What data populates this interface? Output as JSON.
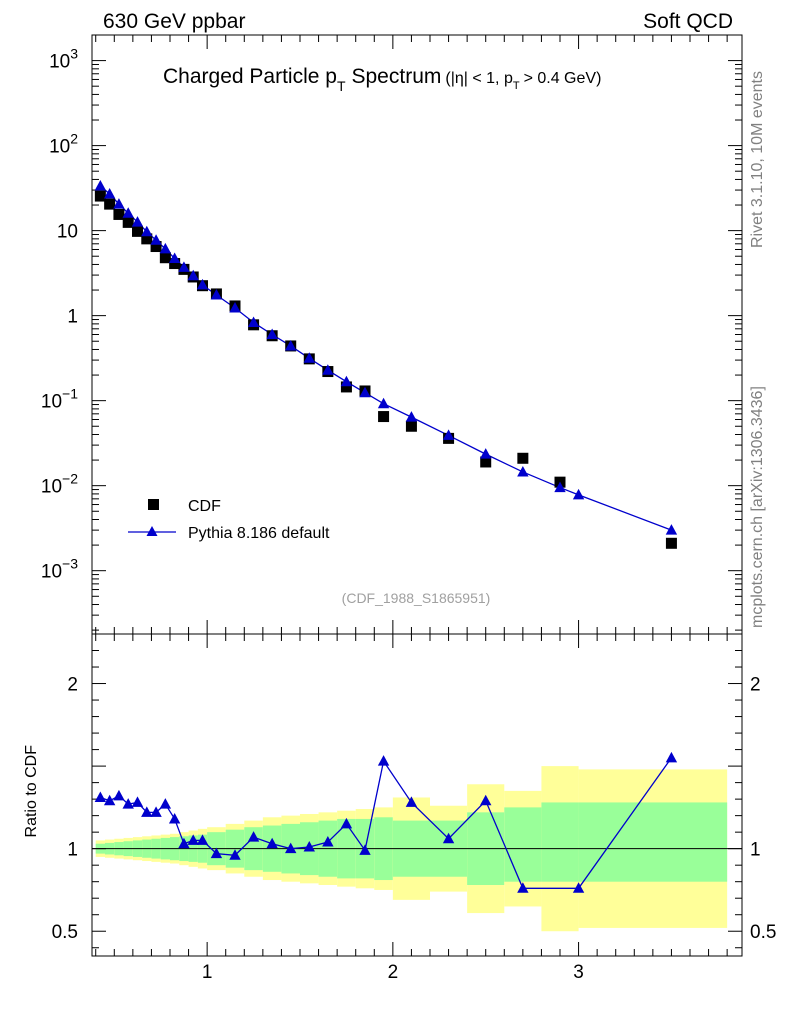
{
  "header": {
    "left": "630 GeV ppbar",
    "right": "Soft QCD"
  },
  "side_labels": {
    "top": "Rivet 3.1.10,  10M events",
    "bottom": "mcplots.cern.ch [arXiv:1306.3436]"
  },
  "colors": {
    "data": "#000000",
    "mc": "#0000cc",
    "band_inner": "#99ff99",
    "band_outer": "#ffff99",
    "watermark": "#a0a0a0"
  },
  "chart_data": [
    {
      "type": "scatter",
      "panel": "main",
      "title": "Charged Particle p",
      "title_sub": "T",
      "title_word": "Spectrum",
      "title_extra": "(|η| < 1, p",
      "title_extra_sub": "T",
      "title_extra_tail": "> 0.4 GeV)",
      "watermark": "(CDF_1988_S1865951)",
      "yscale": "log",
      "xlim": [
        0.38,
        3.88
      ],
      "ylim": [
        0.00018,
        2000
      ],
      "x_ticks": [
        1,
        2,
        3
      ],
      "y_tick_values": [
        0.001,
        0.01,
        0.1,
        1,
        10,
        100,
        1000
      ],
      "y_tick_labels": [
        {
          "base": "10",
          "exp": "−3"
        },
        {
          "base": "10",
          "exp": "−2"
        },
        {
          "base": "10",
          "exp": "−1"
        },
        {
          "base": "1",
          "exp": ""
        },
        {
          "base": "10",
          "exp": ""
        },
        {
          "base": "10",
          "exp": "2"
        },
        {
          "base": "10",
          "exp": "3"
        }
      ],
      "legend_position": "bottom-left",
      "series": [
        {
          "name": "CDF",
          "marker": "square",
          "x": [
            0.425,
            0.475,
            0.525,
            0.575,
            0.625,
            0.675,
            0.725,
            0.775,
            0.825,
            0.875,
            0.925,
            0.975,
            1.05,
            1.15,
            1.25,
            1.35,
            1.45,
            1.55,
            1.65,
            1.75,
            1.85,
            1.95,
            2.1,
            2.3,
            2.5,
            2.7,
            2.9,
            3.5
          ],
          "values": [
            25.5,
            20.5,
            15.5,
            12.5,
            9.8,
            8.0,
            6.5,
            4.8,
            4.1,
            3.5,
            2.85,
            2.25,
            1.8,
            1.3,
            0.78,
            0.58,
            0.44,
            0.31,
            0.22,
            0.145,
            0.13,
            0.065,
            0.05,
            0.036,
            0.019,
            0.021,
            0.011,
            0.0021
          ]
        },
        {
          "name": "Pythia 8.186 default",
          "marker": "triangle",
          "x": [
            0.425,
            0.475,
            0.525,
            0.575,
            0.625,
            0.675,
            0.725,
            0.775,
            0.825,
            0.875,
            0.925,
            0.975,
            1.05,
            1.15,
            1.25,
            1.35,
            1.45,
            1.55,
            1.65,
            1.75,
            1.85,
            1.95,
            2.1,
            2.3,
            2.5,
            2.7,
            2.9,
            3.0,
            3.5
          ],
          "values": [
            33.5,
            27.0,
            20.5,
            16.0,
            12.6,
            9.7,
            7.7,
            6.1,
            4.7,
            3.7,
            2.95,
            2.3,
            1.75,
            1.23,
            0.83,
            0.6,
            0.44,
            0.315,
            0.228,
            0.167,
            0.124,
            0.092,
            0.064,
            0.039,
            0.0235,
            0.0145,
            0.0095,
            0.0078,
            0.003
          ]
        }
      ]
    },
    {
      "type": "line",
      "panel": "ratio",
      "ylabel": "Ratio to CDF",
      "xlim": [
        0.38,
        3.88
      ],
      "ylim": [
        0.35,
        2.3
      ],
      "x_ticks": [
        1,
        2,
        3
      ],
      "x_tick_labels": [
        "1",
        "2",
        "3"
      ],
      "y_ticks": [
        0.5,
        1,
        2
      ],
      "y_tick_labels": [
        "0.5",
        "1",
        "2"
      ],
      "bands": {
        "edges": [
          0.4,
          0.45,
          0.5,
          0.55,
          0.6,
          0.65,
          0.7,
          0.75,
          0.8,
          0.85,
          0.9,
          0.95,
          1.0,
          1.1,
          1.2,
          1.3,
          1.4,
          1.5,
          1.6,
          1.7,
          1.8,
          1.9,
          2.0,
          2.2,
          2.4,
          2.6,
          2.8,
          3.0,
          3.8
        ],
        "inner_low": [
          0.97,
          0.965,
          0.96,
          0.955,
          0.95,
          0.945,
          0.94,
          0.935,
          0.93,
          0.925,
          0.92,
          0.915,
          0.9,
          0.885,
          0.87,
          0.86,
          0.85,
          0.84,
          0.83,
          0.82,
          0.82,
          0.81,
          0.83,
          0.83,
          0.78,
          0.8,
          0.8,
          0.8
        ],
        "inner_high": [
          1.03,
          1.035,
          1.04,
          1.045,
          1.05,
          1.055,
          1.06,
          1.065,
          1.07,
          1.075,
          1.08,
          1.085,
          1.1,
          1.115,
          1.13,
          1.14,
          1.15,
          1.16,
          1.17,
          1.18,
          1.18,
          1.19,
          1.17,
          1.17,
          1.22,
          1.25,
          1.28,
          1.28
        ],
        "outer_low": [
          0.95,
          0.945,
          0.94,
          0.935,
          0.93,
          0.925,
          0.92,
          0.915,
          0.91,
          0.9,
          0.89,
          0.88,
          0.87,
          0.85,
          0.83,
          0.81,
          0.8,
          0.79,
          0.78,
          0.77,
          0.76,
          0.75,
          0.69,
          0.74,
          0.61,
          0.65,
          0.5,
          0.52
        ],
        "outer_high": [
          1.05,
          1.055,
          1.06,
          1.065,
          1.07,
          1.075,
          1.08,
          1.085,
          1.09,
          1.1,
          1.11,
          1.12,
          1.13,
          1.15,
          1.17,
          1.19,
          1.2,
          1.21,
          1.22,
          1.23,
          1.24,
          1.25,
          1.31,
          1.26,
          1.39,
          1.35,
          1.5,
          1.48
        ]
      },
      "series": [
        {
          "name": "Pythia 8.186 default / CDF",
          "marker": "triangle",
          "x": [
            0.425,
            0.475,
            0.525,
            0.575,
            0.625,
            0.675,
            0.725,
            0.775,
            0.825,
            0.875,
            0.925,
            0.975,
            1.05,
            1.15,
            1.25,
            1.35,
            1.45,
            1.55,
            1.65,
            1.75,
            1.85,
            1.95,
            2.1,
            2.3,
            2.5,
            2.7,
            3.0,
            3.5
          ],
          "values": [
            1.31,
            1.29,
            1.32,
            1.27,
            1.28,
            1.22,
            1.22,
            1.27,
            1.18,
            1.03,
            1.05,
            1.05,
            0.97,
            0.96,
            1.07,
            1.03,
            1.0,
            1.01,
            1.04,
            1.15,
            0.99,
            1.53,
            1.28,
            1.06,
            1.29,
            0.76,
            0.76,
            1.55
          ]
        }
      ]
    }
  ]
}
